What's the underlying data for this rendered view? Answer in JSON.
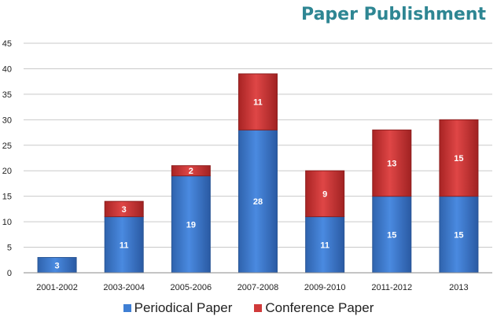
{
  "chart_data": {
    "type": "bar",
    "stacked": true,
    "title": "Paper Publishment",
    "categories": [
      "2001-2002",
      "2003-2004",
      "2005-2006",
      "2007-2008",
      "2009-2010",
      "2011-2012",
      "2013"
    ],
    "series": [
      {
        "name": "Periodical Paper",
        "color": "#3f7fd4",
        "values": [
          3,
          11,
          19,
          28,
          11,
          15,
          15
        ]
      },
      {
        "name": "Conference Paper",
        "color": "#d03a3a",
        "values": [
          0,
          3,
          2,
          11,
          9,
          13,
          15
        ]
      }
    ],
    "ylim": [
      0,
      45
    ],
    "yticks": [
      0,
      5,
      10,
      15,
      20,
      25,
      30,
      35,
      40,
      45
    ],
    "grid": true,
    "legend_position": "bottom"
  }
}
